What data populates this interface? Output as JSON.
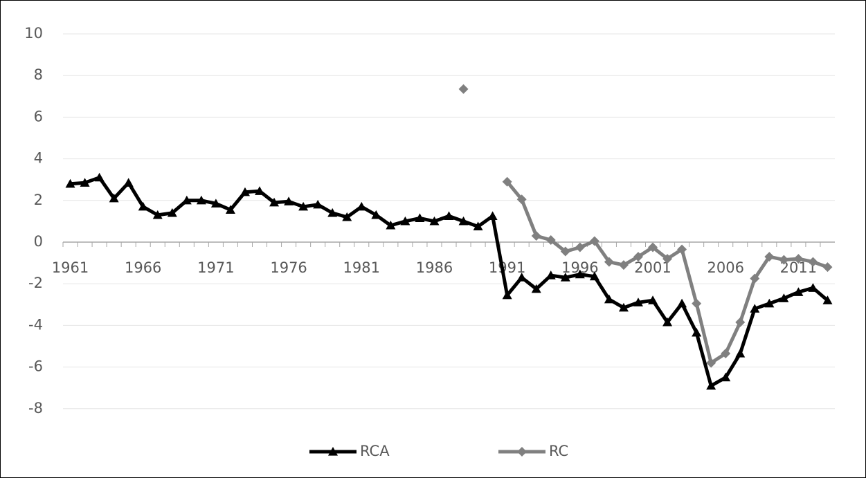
{
  "chart_data": {
    "type": "line",
    "x": [
      1961,
      1962,
      1963,
      1964,
      1965,
      1966,
      1967,
      1968,
      1969,
      1970,
      1971,
      1972,
      1973,
      1974,
      1975,
      1976,
      1977,
      1978,
      1979,
      1980,
      1981,
      1982,
      1983,
      1984,
      1985,
      1986,
      1987,
      1988,
      1989,
      1990,
      1991,
      1992,
      1993,
      1994,
      1995,
      1996,
      1997,
      1998,
      1999,
      2000,
      2001,
      2002,
      2003,
      2004,
      2005,
      2006,
      2007,
      2008,
      2009,
      2010,
      2011,
      2012,
      2013
    ],
    "series": [
      {
        "name": "RCA",
        "color": "#000000",
        "marker": "triangle",
        "values": [
          2.8,
          2.85,
          3.1,
          2.1,
          2.85,
          1.7,
          1.3,
          1.4,
          2.0,
          2.0,
          1.85,
          1.55,
          2.4,
          2.45,
          1.9,
          1.95,
          1.7,
          1.8,
          1.4,
          1.2,
          1.7,
          1.3,
          0.8,
          1.0,
          1.15,
          1.0,
          1.25,
          1.0,
          0.75,
          1.25,
          -2.55,
          -1.7,
          -2.25,
          -1.6,
          -1.7,
          -1.55,
          -1.65,
          -2.75,
          -3.15,
          -2.9,
          -2.8,
          -3.85,
          -2.95,
          -4.35,
          -6.9,
          -6.5,
          -5.35,
          -3.2,
          -2.95,
          -2.7,
          -2.4,
          -2.2,
          -2.8
        ]
      },
      {
        "name": "RC",
        "color": "#808080",
        "marker": "diamond",
        "values": [
          null,
          null,
          null,
          null,
          null,
          null,
          null,
          null,
          null,
          null,
          null,
          null,
          null,
          null,
          null,
          null,
          null,
          null,
          null,
          null,
          null,
          null,
          null,
          null,
          null,
          null,
          null,
          7.35,
          null,
          null,
          2.9,
          2.05,
          0.3,
          0.1,
          -0.45,
          -0.25,
          0.05,
          -0.95,
          -1.1,
          -0.7,
          -0.25,
          -0.8,
          -0.35,
          -2.95,
          -5.8,
          -5.35,
          -3.85,
          -1.75,
          -0.7,
          -0.85,
          -0.8,
          -0.95,
          -1.2
        ]
      }
    ],
    "xlim": [
      1960.5,
      2013.5
    ],
    "xticks": [
      1961,
      1966,
      1971,
      1976,
      1981,
      1986,
      1991,
      1996,
      2001,
      2006,
      2011
    ],
    "ylim": [
      -10,
      10
    ],
    "yticks": [
      -8,
      -6,
      -4,
      -2,
      0,
      2,
      4,
      6,
      8,
      10
    ],
    "grid": true,
    "legend": "bottom"
  }
}
